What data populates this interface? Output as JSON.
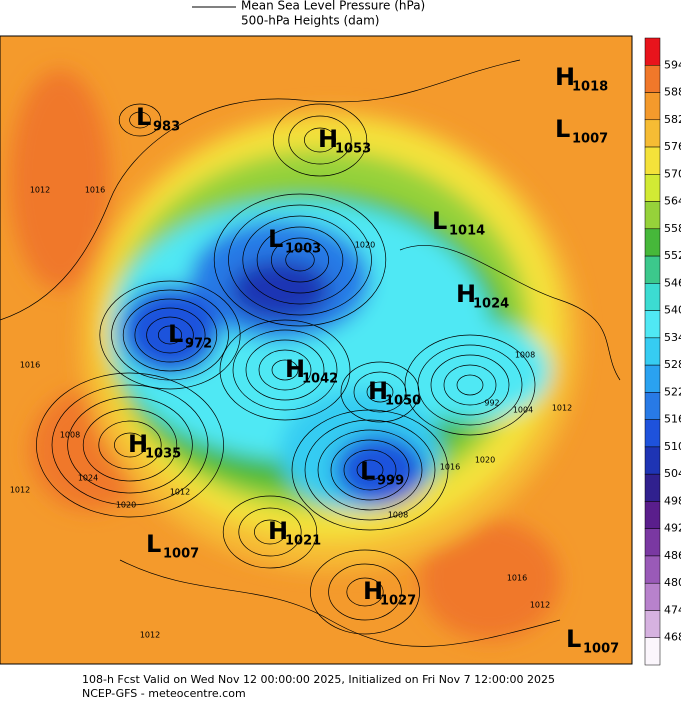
{
  "header": {
    "line1": "Mean Sea Level Pressure (hPa)",
    "line2": "500-hPa Heights (dam)"
  },
  "colorbar": {
    "labels": [
      "594",
      "588",
      "582",
      "576",
      "570",
      "564",
      "558",
      "552",
      "546",
      "540",
      "534",
      "528",
      "522",
      "516",
      "510",
      "504",
      "498",
      "492",
      "486",
      "480",
      "474",
      "468"
    ],
    "colors": [
      "#e8141c",
      "#f0782a",
      "#f49a2c",
      "#f6bc34",
      "#f4e23a",
      "#d2ea34",
      "#96d23a",
      "#46b83a",
      "#3cc88c",
      "#3cdcd2",
      "#50e8f4",
      "#36ccf2",
      "#2aa2f0",
      "#287ae6",
      "#1e52dc",
      "#1e34b4",
      "#30208e",
      "#5a1e8c",
      "#7a38a2",
      "#9a5ab8",
      "#b882cc",
      "#d6b2e0",
      "#fbf6fc"
    ]
  },
  "centers": [
    {
      "letter": "H",
      "value": "1018"
    },
    {
      "letter": "L",
      "value": "1007"
    },
    {
      "letter": "L",
      "value": "983"
    },
    {
      "letter": "H",
      "value": "1053"
    },
    {
      "letter": "L",
      "value": "1014"
    },
    {
      "letter": "L",
      "value": "1003"
    },
    {
      "letter": "H",
      "value": "1024"
    },
    {
      "letter": "L",
      "value": "972"
    },
    {
      "letter": "H",
      "value": "1042"
    },
    {
      "letter": "H",
      "value": "1050"
    },
    {
      "letter": "H",
      "value": "1035"
    },
    {
      "letter": "L",
      "value": "999"
    },
    {
      "letter": "L",
      "value": "1007"
    },
    {
      "letter": "H",
      "value": "1021"
    },
    {
      "letter": "H",
      "value": "1027"
    },
    {
      "letter": "L",
      "value": "1007"
    }
  ],
  "isobar_labels": [
    "1012",
    "1016",
    "1012",
    "1008",
    "1024",
    "1020",
    "1012",
    "1016",
    "1020",
    "1008",
    "1012",
    "992",
    "1004",
    "1020",
    "1016",
    "1008",
    "1012",
    "1016",
    "1012"
  ],
  "footer": {
    "line1": "108-h Fcst Valid on Wed Nov 12 00:00:00 2025, Initialized on Fri Nov  7 12:00:00 2025",
    "line2": "NCEP-GFS  - meteocentre.com"
  }
}
